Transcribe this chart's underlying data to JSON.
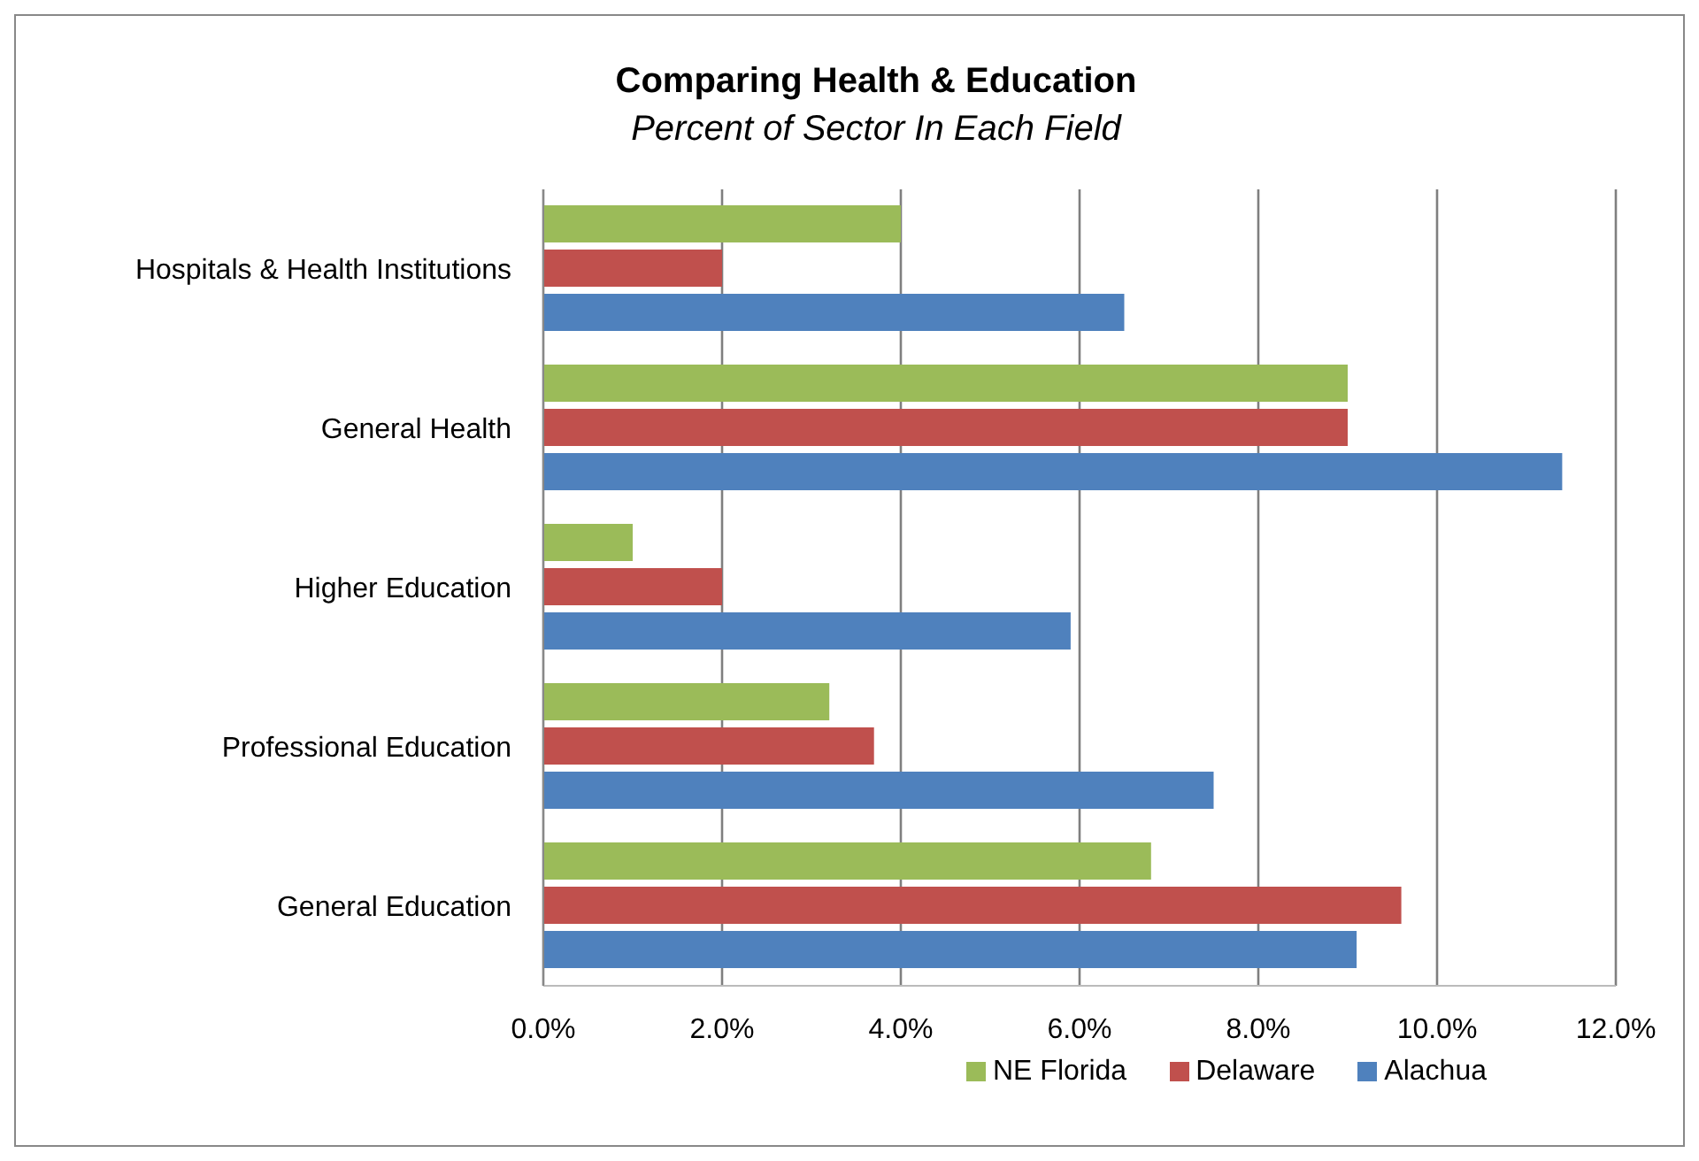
{
  "chart_data": {
    "type": "bar",
    "orientation": "horizontal",
    "title": "Comparing Health & Education",
    "subtitle": "Percent of Sector In Each Field",
    "categories": [
      "Hospitals & Health Institutions",
      "General Health",
      "Higher Education",
      "Professional Education",
      "General Education"
    ],
    "series": [
      {
        "name": "NE Florida",
        "color": "#9bbb59",
        "values": [
          4.0,
          9.0,
          1.0,
          3.2,
          6.8
        ]
      },
      {
        "name": "Delaware",
        "color": "#c0504d",
        "values": [
          2.0,
          9.0,
          2.0,
          3.7,
          9.6
        ]
      },
      {
        "name": "Alachua",
        "color": "#4f81bd",
        "values": [
          6.5,
          11.4,
          5.9,
          7.5,
          9.1
        ]
      }
    ],
    "xlim": [
      0,
      12
    ],
    "xticks": [
      {
        "value": 0,
        "label": "0.0%"
      },
      {
        "value": 2,
        "label": "2.0%"
      },
      {
        "value": 4,
        "label": "4.0%"
      },
      {
        "value": 6,
        "label": "6.0%"
      },
      {
        "value": 8,
        "label": "8.0%"
      },
      {
        "value": 10,
        "label": "10.0%"
      },
      {
        "value": 12,
        "label": "12.0%"
      }
    ],
    "grid": "x",
    "legend": "bottom"
  }
}
